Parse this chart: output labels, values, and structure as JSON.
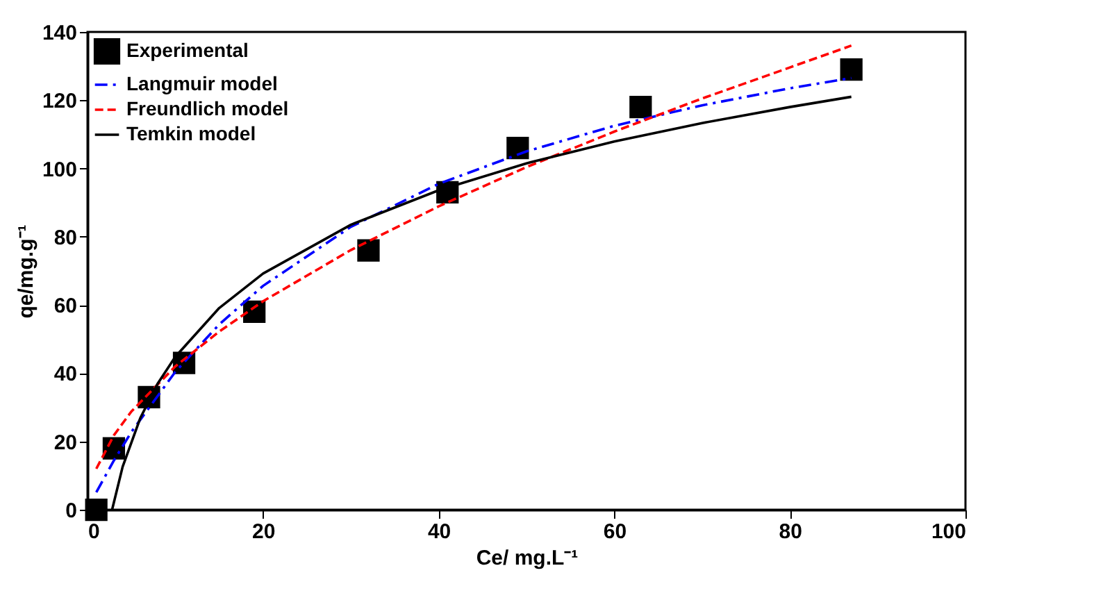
{
  "chart_data": {
    "type": "line",
    "xlabel": "Ce/ mg.L⁻¹",
    "ylabel": "qe/mg.g⁻¹",
    "xlim": [
      0,
      100
    ],
    "xticks": [
      0,
      20,
      40,
      60,
      80,
      100
    ],
    "ylim": [
      0,
      140
    ],
    "yticks": [
      0,
      20,
      40,
      60,
      80,
      100,
      120,
      140
    ],
    "grid": false,
    "legend": "top left",
    "series": [
      {
        "name": "Experimental",
        "type": "scatter",
        "marker": "square",
        "color": "#000000",
        "x": [
          1,
          3,
          7,
          11,
          19,
          32,
          41,
          49,
          63,
          87
        ],
        "values": [
          0,
          18,
          33,
          43,
          58,
          76,
          93,
          106,
          118,
          129
        ]
      },
      {
        "name": "Langmuir model",
        "line_style": "dashdot",
        "color": "#0000ff",
        "x": [
          1,
          3,
          5,
          10,
          15,
          20,
          30,
          40,
          50,
          60,
          70,
          80,
          87
        ],
        "values": [
          5.1,
          14.4,
          22.8,
          40.4,
          54.3,
          65.6,
          82.9,
          95.5,
          105,
          112.5,
          118.5,
          123.5,
          126.5
        ]
      },
      {
        "name": "Freundlich model",
        "line_style": "dashed",
        "color": "#ff0000",
        "x": [
          1,
          3,
          5,
          10,
          15,
          20,
          30,
          40,
          50,
          60,
          70,
          80,
          87
        ],
        "values": [
          12,
          21.8,
          28.8,
          42,
          52.2,
          61.1,
          76.1,
          88.9,
          100.4,
          110.8,
          120.5,
          129.6,
          136
        ]
      },
      {
        "name": "Temkin model",
        "line_style": "solid",
        "color": "#000000",
        "x": [
          2.8,
          4,
          6,
          8,
          10,
          15,
          20,
          30,
          40,
          50,
          60,
          70,
          80,
          87
        ],
        "values": [
          0,
          12.6,
          26.8,
          37,
          44.8,
          59.1,
          69.2,
          83.5,
          93.6,
          101.5,
          107.9,
          113.3,
          118,
          121
        ]
      }
    ]
  }
}
